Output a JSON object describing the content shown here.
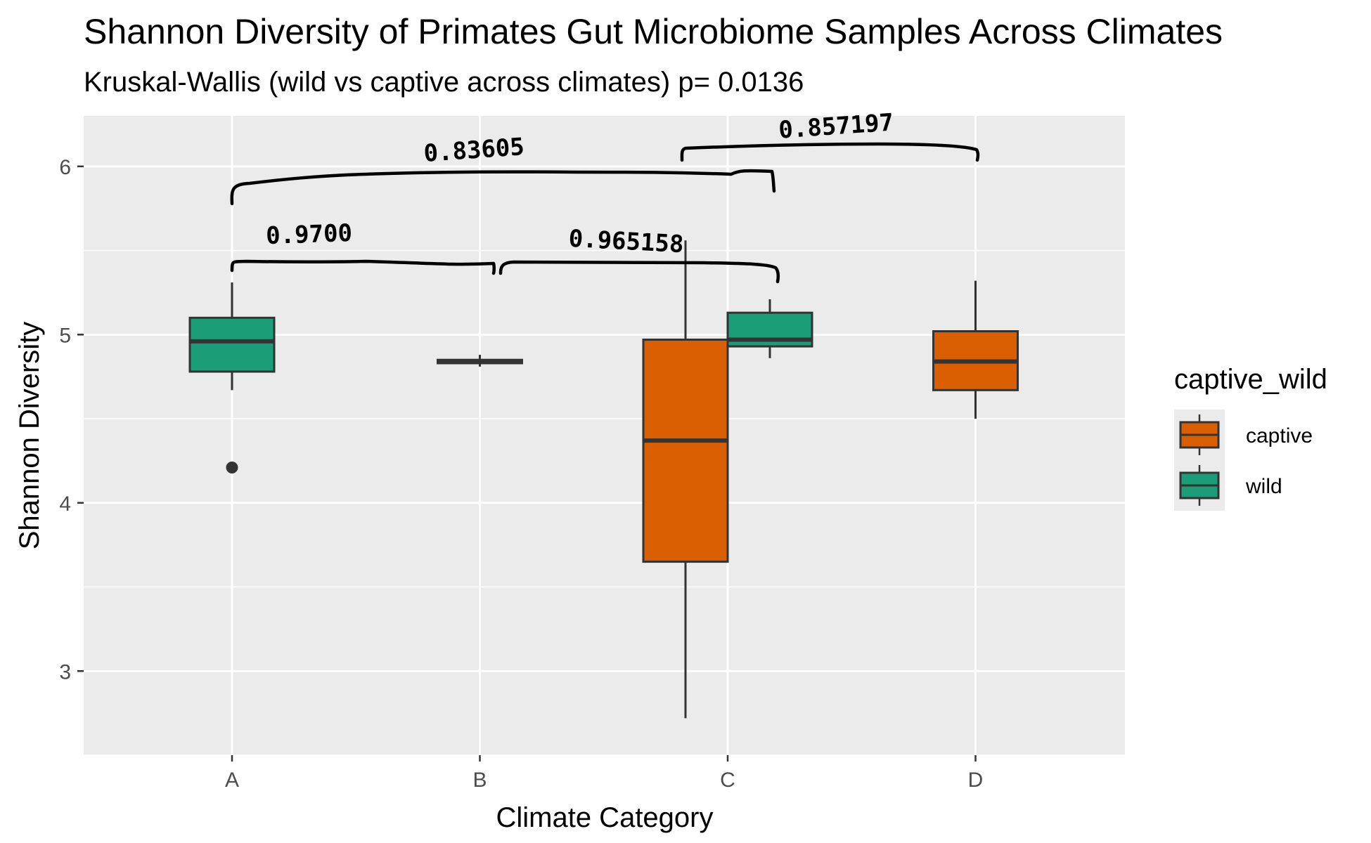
{
  "chart_data": {
    "type": "boxplot",
    "title": "Shannon Diversity of Primates Gut Microbiome Samples Across Climates",
    "subtitle": "Kruskal-Wallis (wild vs captive across climates) p= 0.0136",
    "xlabel": "Climate Category",
    "ylabel": "Shannon Diversity",
    "categories": [
      "A",
      "B",
      "C",
      "D"
    ],
    "ylim": [
      2.5,
      6.3
    ],
    "yticks": [
      3,
      4,
      5,
      6
    ],
    "ytick_labels": [
      "3",
      "4",
      "5",
      "6"
    ],
    "grid": true,
    "legend": {
      "title": "captive_wild",
      "placement": "right",
      "entries": [
        {
          "label": "captive",
          "color": "#D95F02"
        },
        {
          "label": "wild",
          "color": "#1B9E77"
        }
      ]
    },
    "series": [
      {
        "name": "captive",
        "color": "#D95F02",
        "boxes": [
          {
            "category": "C",
            "whisker_low": 2.72,
            "q1": 3.65,
            "median": 4.37,
            "q3": 4.97,
            "whisker_high": 5.56,
            "outliers": []
          },
          {
            "category": "D",
            "whisker_low": 4.5,
            "q1": 4.67,
            "median": 4.84,
            "q3": 5.02,
            "whisker_high": 5.32,
            "outliers": []
          }
        ]
      },
      {
        "name": "wild",
        "color": "#1B9E77",
        "boxes": [
          {
            "category": "A",
            "whisker_low": 4.67,
            "q1": 4.78,
            "median": 4.96,
            "q3": 5.1,
            "whisker_high": 5.31,
            "outliers": [
              4.21
            ]
          },
          {
            "category": "B",
            "whisker_low": 4.81,
            "q1": 4.83,
            "median": 4.84,
            "q3": 4.85,
            "whisker_high": 4.88,
            "outliers": []
          },
          {
            "category": "C",
            "whisker_low": 4.86,
            "q1": 4.93,
            "median": 4.97,
            "q3": 5.13,
            "whisker_high": 5.21,
            "outliers": []
          }
        ]
      }
    ],
    "annotations": [
      {
        "text": "0.9700",
        "from": "A",
        "to": "B"
      },
      {
        "text": "0.965158",
        "from": "B",
        "to": "C"
      },
      {
        "text": "0.83605",
        "from": "A",
        "to": "C"
      },
      {
        "text": "0.857197",
        "from": "C",
        "to": "D"
      }
    ]
  }
}
